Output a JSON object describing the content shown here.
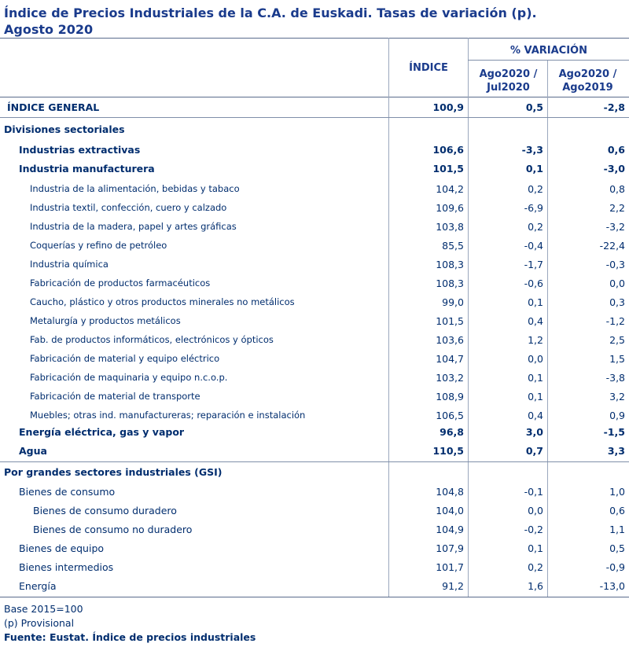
{
  "title_line1": "Índice de Precios Industriales de la C.A. de Euskadi. Tasas de variación (p).",
  "title_line2": "Agosto 2020",
  "header": {
    "indice": "ÍNDICE",
    "variacion": "% VARIACIÓN",
    "col1_l1": "Ago2020 /",
    "col1_l2": "Jul2020",
    "col2_l1": "Ago2020 /",
    "col2_l2": "Ago2019"
  },
  "rows": [
    {
      "label": "ÍNDICE GENERAL",
      "indice": "100,9",
      "v1": "0,5",
      "v2": "-2,8"
    },
    {
      "label": "Divisiones sectoriales",
      "indice": "",
      "v1": "",
      "v2": ""
    },
    {
      "label": "Industrias extractivas",
      "indice": "106,6",
      "v1": "-3,3",
      "v2": "0,6"
    },
    {
      "label": "Industria manufacturera",
      "indice": "101,5",
      "v1": "0,1",
      "v2": "-3,0"
    },
    {
      "label": "Industria de la alimentación, bebidas y tabaco",
      "indice": "104,2",
      "v1": "0,2",
      "v2": "0,8"
    },
    {
      "label": "Industria textil, confección, cuero y calzado",
      "indice": "109,6",
      "v1": "-6,9",
      "v2": "2,2"
    },
    {
      "label": "Industria de la madera, papel y artes gráficas",
      "indice": "103,8",
      "v1": "0,2",
      "v2": "-3,2"
    },
    {
      "label": "Coquerías y refino de petróleo",
      "indice": "85,5",
      "v1": "-0,4",
      "v2": "-22,4"
    },
    {
      "label": "Industria química",
      "indice": "108,3",
      "v1": "-1,7",
      "v2": "-0,3"
    },
    {
      "label": "Fabricación de productos farmacéuticos",
      "indice": "108,3",
      "v1": "-0,6",
      "v2": "0,0"
    },
    {
      "label": "Caucho, plástico y otros productos minerales no metálicos",
      "indice": "99,0",
      "v1": "0,1",
      "v2": "0,3"
    },
    {
      "label": "Metalurgía y productos metálicos",
      "indice": "101,5",
      "v1": "0,4",
      "v2": "-1,2"
    },
    {
      "label": "Fab. de productos informáticos, electrónicos y ópticos",
      "indice": "103,6",
      "v1": "1,2",
      "v2": "2,5"
    },
    {
      "label": "Fabricación de material y equipo eléctrico",
      "indice": "104,7",
      "v1": "0,0",
      "v2": "1,5"
    },
    {
      "label": "Fabricación de maquinaria y equipo n.c.o.p.",
      "indice": "103,2",
      "v1": "0,1",
      "v2": "-3,8"
    },
    {
      "label": "Fabricación de material de transporte",
      "indice": "108,9",
      "v1": "0,1",
      "v2": "3,2"
    },
    {
      "label": "Muebles; otras ind. manufactureras; reparación e instalación",
      "indice": "106,5",
      "v1": "0,4",
      "v2": "0,9"
    },
    {
      "label": "Energía eléctrica, gas y vapor",
      "indice": "96,8",
      "v1": "3,0",
      "v2": "-1,5"
    },
    {
      "label": "Agua",
      "indice": "110,5",
      "v1": "0,7",
      "v2": "3,3"
    },
    {
      "label": "Por grandes sectores industriales (GSI)",
      "indice": "",
      "v1": "",
      "v2": ""
    },
    {
      "label": "Bienes de consumo",
      "indice": "104,8",
      "v1": "-0,1",
      "v2": "1,0"
    },
    {
      "label": "Bienes de consumo duradero",
      "indice": "104,0",
      "v1": "0,0",
      "v2": "0,6"
    },
    {
      "label": "Bienes de consumo no duradero",
      "indice": "104,9",
      "v1": "-0,2",
      "v2": "1,1"
    },
    {
      "label": "Bienes de equipo",
      "indice": "107,9",
      "v1": "0,1",
      "v2": "0,5"
    },
    {
      "label": "Bienes intermedios",
      "indice": "101,7",
      "v1": "0,2",
      "v2": "-0,9"
    },
    {
      "label": "Energía",
      "indice": "91,2",
      "v1": "1,6",
      "v2": "-13,0"
    }
  ],
  "footer": {
    "base": "Base 2015=100",
    "provisional": "(p) Provisional",
    "source": "Fuente: Eustat. Índice de precios industriales"
  }
}
